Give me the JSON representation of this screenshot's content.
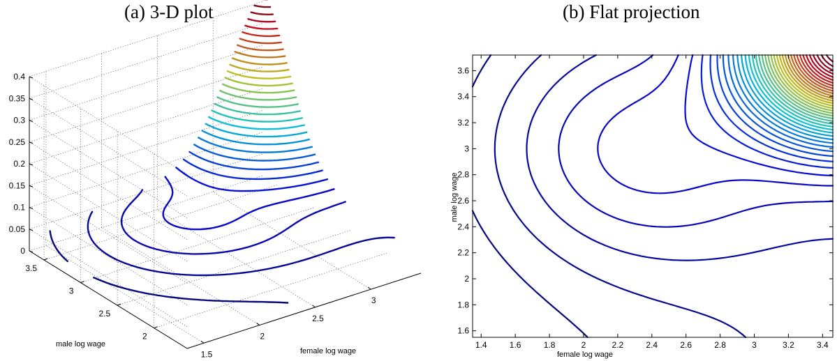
{
  "chart_data": [
    {
      "type": "contour-3d",
      "title": "(a) 3-D plot",
      "xlabel": "female log wage",
      "ylabel": "male log wage",
      "zlabel": "",
      "x_ticks": [
        "1.5",
        "2",
        "2.5",
        "3"
      ],
      "y_ticks": [
        "2",
        "2.5",
        "3",
        "3.5"
      ],
      "z_ticks": [
        "0",
        "0.05",
        "0.1",
        "0.15",
        "0.2",
        "0.25",
        "0.3",
        "0.35",
        "0.4"
      ],
      "xlim": [
        1.35,
        3.45
      ],
      "ylim": [
        1.55,
        3.7
      ],
      "zlim": [
        0,
        0.4
      ],
      "grid": true,
      "colormap": "jet",
      "line_width_levels": 30
    },
    {
      "type": "contour",
      "title": "(b) Flat projection",
      "xlabel": "female log wage",
      "ylabel": "male log wage",
      "x_ticks": [
        "1.4",
        "1.6",
        "1.8",
        "2",
        "2.2",
        "2.4",
        "2.6",
        "2.8",
        "3",
        "3.2",
        "3.4"
      ],
      "y_ticks": [
        "1.6",
        "1.8",
        "2",
        "2.2",
        "2.4",
        "2.6",
        "2.8",
        "3",
        "3.2",
        "3.4",
        "3.6"
      ],
      "xlim": [
        1.35,
        3.46
      ],
      "ylim": [
        1.55,
        3.72
      ],
      "grid": false,
      "colormap": "jet",
      "levels": 40
    }
  ]
}
